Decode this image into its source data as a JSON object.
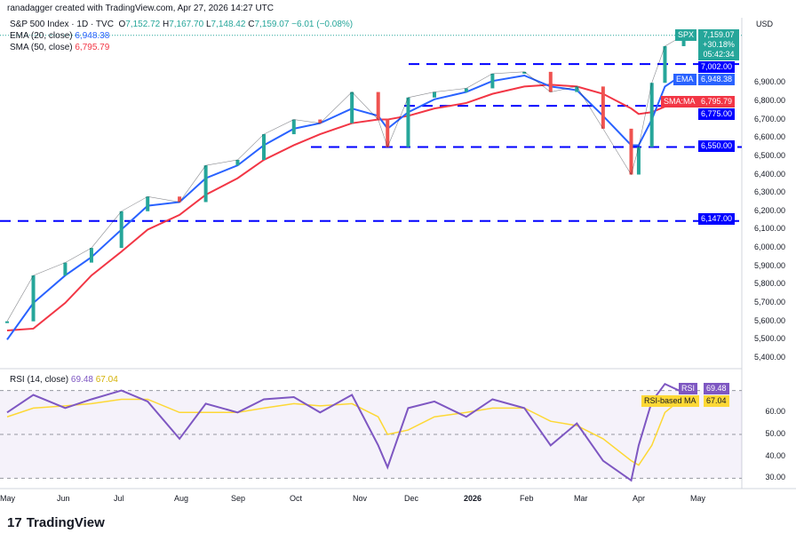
{
  "header": {
    "credit": "ranadagger created with TradingView.com, Apr 27, 2026 14:27 UTC",
    "symbol": "S&P 500 Index · 1D · TVC",
    "o_label": "O",
    "o": "7,152.72",
    "h_label": "H",
    "h": "7,167.70",
    "l_label": "L",
    "l": "7,148.42",
    "c_label": "C",
    "c": "7,159.07",
    "change": "−6.01 (−0.08%)",
    "ema_label": "EMA (20, close)",
    "ema_value": "6,948.38",
    "sma_label": "SMA (50, close)",
    "sma_value": "6,795.79",
    "rsi_label": "RSI (14, close)",
    "rsi_value": "69.48",
    "rsi_ma_value": "67.04"
  },
  "price_scale": {
    "currency": "USD",
    "ticks": [
      "6,900.00",
      "6,800.00",
      "6,700.00",
      "6,600.00",
      "6,500.00",
      "6,400.00",
      "6,300.00",
      "6,200.00",
      "6,100.00",
      "6,000.00",
      "5,900.00",
      "5,800.00",
      "5,700.00",
      "5,600.00",
      "5,500.00",
      "5,400.00"
    ],
    "spx_tag": "SPX",
    "last_price": "7,159.07",
    "last_change": "+30.18%",
    "countdown": "05:42:34",
    "ema_tag": "EMA",
    "ema_value": "6,948.38",
    "sma_tag": "SMA:MA",
    "sma_value": "6,795.79",
    "levels": [
      "7,002.00",
      "6,775.00",
      "6,550.00",
      "6,147.00"
    ]
  },
  "rsi_scale": {
    "ticks": [
      "60.00",
      "50.00",
      "40.00",
      "30.00"
    ],
    "rsi_tag": "RSI",
    "rsi_value": "69.48",
    "ma_tag": "RSI-based MA",
    "ma_value": "67.04"
  },
  "time_axis": [
    "May",
    "Jun",
    "Jul",
    "Aug",
    "Sep",
    "Oct",
    "Nov",
    "Dec",
    "2026",
    "Feb",
    "Mar",
    "Apr",
    "May"
  ],
  "footer": {
    "brand": "TradingView"
  },
  "colors": {
    "up": "#26a69a",
    "down": "#ef5350",
    "ema": "#2962ff",
    "sma": "#f23645",
    "level": "#0000ff",
    "rsi": "#7e57c2",
    "rsi_ma": "#fdd835"
  },
  "chart_data": {
    "type": "line",
    "title": "S&P 500 Index · 1D · TVC",
    "x": [
      "2025-05-01",
      "2025-05-15",
      "2025-06-01",
      "2025-06-15",
      "2025-07-01",
      "2025-07-15",
      "2025-08-01",
      "2025-08-15",
      "2025-09-01",
      "2025-09-15",
      "2025-10-01",
      "2025-10-15",
      "2025-11-01",
      "2025-11-15",
      "2025-11-20",
      "2025-12-01",
      "2025-12-15",
      "2026-01-01",
      "2026-01-15",
      "2026-02-01",
      "2026-02-15",
      "2026-03-01",
      "2026-03-15",
      "2026-03-30",
      "2026-04-03",
      "2026-04-10",
      "2026-04-17",
      "2026-04-27"
    ],
    "series": [
      {
        "name": "Close",
        "values": [
          5600,
          5850,
          5920,
          6000,
          6200,
          6280,
          6250,
          6450,
          6480,
          6620,
          6700,
          6680,
          6850,
          6700,
          6550,
          6820,
          6850,
          6870,
          6950,
          6960,
          6850,
          6880,
          6650,
          6400,
          6550,
          6900,
          7100,
          7159
        ]
      },
      {
        "name": "EMA (20, close)",
        "values": [
          5500,
          5700,
          5850,
          5950,
          6100,
          6230,
          6250,
          6380,
          6450,
          6560,
          6650,
          6680,
          6760,
          6720,
          6650,
          6740,
          6810,
          6850,
          6910,
          6940,
          6880,
          6860,
          6720,
          6560,
          6560,
          6700,
          6880,
          6948
        ]
      },
      {
        "name": "SMA (50, close)",
        "values": [
          5550,
          5560,
          5700,
          5850,
          5980,
          6100,
          6180,
          6290,
          6380,
          6480,
          6560,
          6620,
          6680,
          6700,
          6700,
          6720,
          6760,
          6790,
          6840,
          6880,
          6890,
          6880,
          6840,
          6760,
          6730,
          6740,
          6770,
          6796
        ]
      },
      {
        "name": "RSI (14, close)",
        "values": [
          60,
          68,
          62,
          66,
          70,
          65,
          48,
          64,
          60,
          66,
          67,
          60,
          68,
          45,
          35,
          62,
          65,
          58,
          66,
          62,
          45,
          55,
          38,
          29,
          45,
          65,
          73,
          69
        ]
      },
      {
        "name": "RSI-based MA",
        "values": [
          58,
          62,
          63,
          64,
          66,
          66,
          60,
          60,
          60,
          62,
          64,
          63,
          64,
          58,
          50,
          52,
          58,
          60,
          62,
          62,
          56,
          54,
          48,
          38,
          36,
          45,
          60,
          67
        ]
      }
    ],
    "horizontal_levels": [
      7002,
      6775,
      6550,
      6147
    ],
    "ylim": [
      5400,
      7200
    ],
    "rsi_ylim": [
      25,
      75
    ],
    "rsi_bands": [
      30,
      70
    ],
    "xlabel": "",
    "ylabel": "USD",
    "legend": "top-left"
  }
}
